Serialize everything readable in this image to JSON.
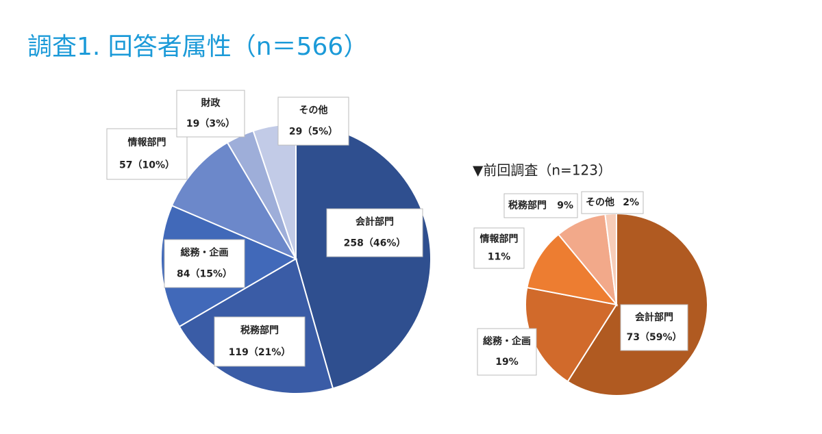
{
  "title": "調査1. 回答者属性（n＝566）",
  "chart_data": [
    {
      "type": "pie",
      "categories": [
        "会計部門",
        "税務部門",
        "総務・企画",
        "情報部門",
        "財政",
        "その他"
      ],
      "values": [
        258,
        119,
        84,
        57,
        19,
        29
      ],
      "value_labels": [
        "258（46%）",
        "119（21%）",
        "84（15%）",
        "57（10%）",
        "19（3%）",
        "29（5%）"
      ],
      "colors": [
        "#2f4f8f",
        "#3a5ca6",
        "#4169b9",
        "#6c88ca",
        "#9eaed9",
        "#c2cbe7"
      ]
    },
    {
      "type": "pie",
      "title": "▼前回調査（n=123）",
      "categories": [
        "会計部門",
        "総務・企画",
        "情報部門",
        "税務部門",
        "その他"
      ],
      "values": [
        59,
        19,
        11,
        9,
        2
      ],
      "value_labels": [
        "73（59%）",
        "19%",
        "11%",
        "9%",
        "2%"
      ],
      "colors": [
        "#b05a21",
        "#d16a2b",
        "#ed7d31",
        "#f2a98a",
        "#f7cdb9"
      ]
    }
  ]
}
